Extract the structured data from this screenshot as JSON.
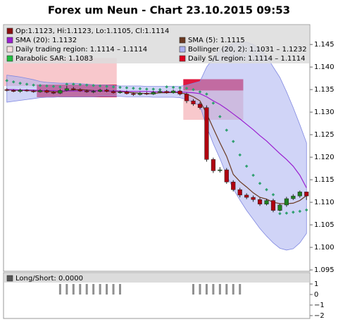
{
  "chart_data": {
    "type": "candlestick",
    "title": "Forex um Neun - Chart 23.10.2015 09:53",
    "ylim": [
      1.0947,
      1.1494
    ],
    "yticks": [
      1.095,
      {
        "value": 1.1,
        "label": "1.100"
      },
      1.105,
      {
        "value": 1.11,
        "label": "1.110"
      },
      1.115,
      {
        "value": 1.12,
        "label": "1.120"
      },
      1.125,
      {
        "value": 1.13,
        "label": "1.130"
      },
      1.135,
      {
        "value": 1.14,
        "label": "1.140"
      },
      1.145
    ],
    "legend": [
      {
        "name": "Op:1.1123, Hi:1.1123, Lo:1.1105, Cl:1.1114",
        "color": "#8b1010"
      },
      {
        "name": "SMA (5): 1.1115",
        "color": "#6b3a22"
      },
      {
        "name": "SMA (20): 1.1132",
        "color": "#9a20d0"
      },
      {
        "name": "Bollinger (20, 2): 1.1031 – 1.1232",
        "color": "#aab0f0"
      },
      {
        "name": "Daily trading region: 1.1114 – 1.1114",
        "color": "#f8e0e0"
      },
      {
        "name": "Daily S/L region: 1.1114 – 1.1114",
        "color": "#e00020"
      },
      {
        "name": "Parabolic SAR: 1.1083",
        "color": "#20c040"
      }
    ],
    "candles": {
      "up_color": "#208020",
      "down_color": "#b00010",
      "open": [
        1.135,
        1.1348,
        1.1346,
        1.1349,
        1.1347,
        1.1345,
        1.1348,
        1.1344,
        1.1342,
        1.1348,
        1.1352,
        1.135,
        1.1347,
        1.1345,
        1.1346,
        1.1349,
        1.1346,
        1.1343,
        1.1345,
        1.1341,
        1.1339,
        1.1342,
        1.134,
        1.1344,
        1.1346,
        1.1343,
        1.1347,
        1.134,
        1.1325,
        1.1318,
        1.131,
        1.1195,
        1.117,
        1.1172,
        1.1145,
        1.1128,
        1.1116,
        1.1111,
        1.1106,
        1.1096,
        1.1104,
        1.1082,
        1.1094,
        1.1108,
        1.1114,
        1.1123
      ],
      "high": [
        1.1353,
        1.1351,
        1.1352,
        1.1351,
        1.1349,
        1.1351,
        1.135,
        1.1347,
        1.1351,
        1.1358,
        1.1356,
        1.1353,
        1.135,
        1.1349,
        1.1352,
        1.1352,
        1.1349,
        1.1348,
        1.1348,
        1.1344,
        1.1345,
        1.1345,
        1.1347,
        1.1349,
        1.1349,
        1.135,
        1.135,
        1.1343,
        1.1329,
        1.1322,
        1.1315,
        1.1199,
        1.1178,
        1.1176,
        1.1149,
        1.1132,
        1.112,
        1.1115,
        1.111,
        1.1108,
        1.1108,
        1.1097,
        1.1112,
        1.1118,
        1.1126,
        1.1123
      ],
      "low": [
        1.1346,
        1.1344,
        1.1343,
        1.1345,
        1.1343,
        1.1343,
        1.1342,
        1.134,
        1.134,
        1.1346,
        1.1348,
        1.1345,
        1.1343,
        1.1342,
        1.1344,
        1.1344,
        1.1341,
        1.1341,
        1.1339,
        1.1336,
        1.1337,
        1.1338,
        1.1338,
        1.1342,
        1.1341,
        1.1341,
        1.1337,
        1.132,
        1.1314,
        1.1306,
        1.119,
        1.1165,
        1.1166,
        1.1141,
        1.1124,
        1.1111,
        1.1107,
        1.1101,
        1.1092,
        1.1093,
        1.1078,
        1.108,
        1.109,
        1.1105,
        1.111,
        1.1105
      ],
      "close": [
        1.1348,
        1.1346,
        1.1349,
        1.1347,
        1.1345,
        1.1348,
        1.1344,
        1.1342,
        1.1348,
        1.1352,
        1.135,
        1.1347,
        1.1345,
        1.1346,
        1.1349,
        1.1346,
        1.1343,
        1.1345,
        1.1341,
        1.1339,
        1.1342,
        1.134,
        1.1344,
        1.1346,
        1.1343,
        1.1347,
        1.134,
        1.1325,
        1.1318,
        1.131,
        1.1195,
        1.117,
        1.1172,
        1.1145,
        1.1128,
        1.1116,
        1.1111,
        1.1106,
        1.1096,
        1.1104,
        1.1082,
        1.1094,
        1.1108,
        1.1114,
        1.1123,
        1.1114
      ]
    },
    "series": [
      {
        "style": "line",
        "color": "#6b3a22",
        "values": [
          1.1349,
          1.1349,
          1.1348,
          1.1348,
          1.1347,
          1.1347,
          1.1347,
          1.1345,
          1.1345,
          1.1347,
          1.1349,
          1.135,
          1.1349,
          1.1348,
          1.1347,
          1.1347,
          1.1346,
          1.1346,
          1.1344,
          1.1343,
          1.1342,
          1.1341,
          1.1341,
          1.1343,
          1.1343,
          1.1344,
          1.1343,
          1.134,
          1.1334,
          1.1325,
          1.1297,
          1.1264,
          1.1232,
          1.1202,
          1.1162,
          1.1146,
          1.1134,
          1.1121,
          1.1111,
          1.1107,
          1.11,
          1.1097,
          1.1097,
          1.1098,
          1.1104,
          1.1115
        ]
      },
      {
        "style": "line",
        "color": "#9a20d0",
        "values": [
          1.135,
          1.135,
          1.1349,
          1.1349,
          1.1349,
          1.1348,
          1.1348,
          1.1348,
          1.1347,
          1.1347,
          1.1347,
          1.1347,
          1.1347,
          1.1347,
          1.1347,
          1.1347,
          1.1347,
          1.1347,
          1.1346,
          1.1346,
          1.1346,
          1.1346,
          1.1345,
          1.1345,
          1.1345,
          1.1345,
          1.1345,
          1.1344,
          1.1343,
          1.1341,
          1.1334,
          1.1325,
          1.1317,
          1.1307,
          1.1296,
          1.1285,
          1.1273,
          1.1261,
          1.1248,
          1.1236,
          1.1222,
          1.1208,
          1.1195,
          1.118,
          1.116,
          1.1132
        ]
      },
      {
        "style": "dots",
        "color": "#30a070",
        "values": [
          1.137,
          1.1367,
          1.1364,
          1.1362,
          1.136,
          1.1359,
          1.1358,
          1.1357,
          1.1356,
          1.1362,
          1.1362,
          1.1361,
          1.136,
          1.1359,
          1.1358,
          1.1357,
          1.1356,
          1.1355,
          1.1354,
          1.1353,
          1.1352,
          1.1351,
          1.1351,
          1.135,
          1.1356,
          1.1355,
          1.1354,
          1.1353,
          1.135,
          1.1345,
          1.134,
          1.132,
          1.129,
          1.126,
          1.1235,
          1.1205,
          1.118,
          1.116,
          1.1142,
          1.1128,
          1.1117,
          1.1075,
          1.1076,
          1.1078,
          1.108,
          1.1083
        ]
      }
    ],
    "band": {
      "color": "#aab0f0",
      "upper": [
        1.1382,
        1.138,
        1.1378,
        1.1375,
        1.1372,
        1.1368,
        1.1366,
        1.1365,
        1.1364,
        1.1364,
        1.1364,
        1.1363,
        1.1362,
        1.1361,
        1.136,
        1.136,
        1.1359,
        1.1358,
        1.1358,
        1.1358,
        1.1358,
        1.1357,
        1.1357,
        1.1357,
        1.1357,
        1.1357,
        1.1357,
        1.136,
        1.1364,
        1.1368,
        1.14,
        1.142,
        1.1437,
        1.1445,
        1.1452,
        1.1455,
        1.1455,
        1.145,
        1.144,
        1.1425,
        1.14,
        1.1377,
        1.1345,
        1.131,
        1.1272,
        1.1232
      ],
      "lower": [
        1.1322,
        1.1324,
        1.1326,
        1.1328,
        1.133,
        1.1332,
        1.1333,
        1.1333,
        1.1334,
        1.1334,
        1.1334,
        1.1334,
        1.1334,
        1.1334,
        1.1335,
        1.1335,
        1.1335,
        1.1335,
        1.1334,
        1.1334,
        1.1334,
        1.1334,
        1.1333,
        1.1333,
        1.1333,
        1.1333,
        1.1332,
        1.1328,
        1.1322,
        1.1314,
        1.1268,
        1.123,
        1.1197,
        1.116,
        1.113,
        1.1105,
        1.1082,
        1.1062,
        1.1042,
        1.1025,
        1.101,
        1.0998,
        1.0994,
        1.0997,
        1.101,
        1.1031
      ]
    },
    "regions": [
      {
        "from": 0,
        "to": 16,
        "low": 1.1358,
        "high": 1.142,
        "color": "#f8c8cc"
      },
      {
        "from": 5,
        "to": 16,
        "low": 1.1333,
        "high": 1.1361,
        "color": "#d81e4a"
      },
      {
        "from": 27,
        "to": 35,
        "low": 1.1283,
        "high": 1.1373,
        "color": "#f8c8cc"
      },
      {
        "from": 27,
        "to": 35,
        "low": 1.1348,
        "high": 1.1373,
        "color": "#e01840"
      }
    ],
    "indicator": {
      "label": "Long/Short: 0.0000",
      "color": "#909090",
      "ylim": [
        -2.27,
        2.07
      ],
      "yticks": [
        1,
        0,
        {
          "value": -1,
          "label": "−1"
        },
        {
          "value": -2,
          "label": "−2"
        }
      ],
      "values": [
        0,
        0,
        0,
        0,
        0,
        0,
        0,
        0,
        1,
        1,
        1,
        1,
        1,
        1,
        1,
        1,
        1,
        1,
        0,
        0,
        0,
        0,
        0,
        0,
        0,
        0,
        0,
        0,
        1,
        1,
        1,
        1,
        1,
        1,
        1,
        1,
        0,
        0,
        0,
        0,
        0,
        0,
        0,
        0,
        0,
        0
      ]
    }
  }
}
